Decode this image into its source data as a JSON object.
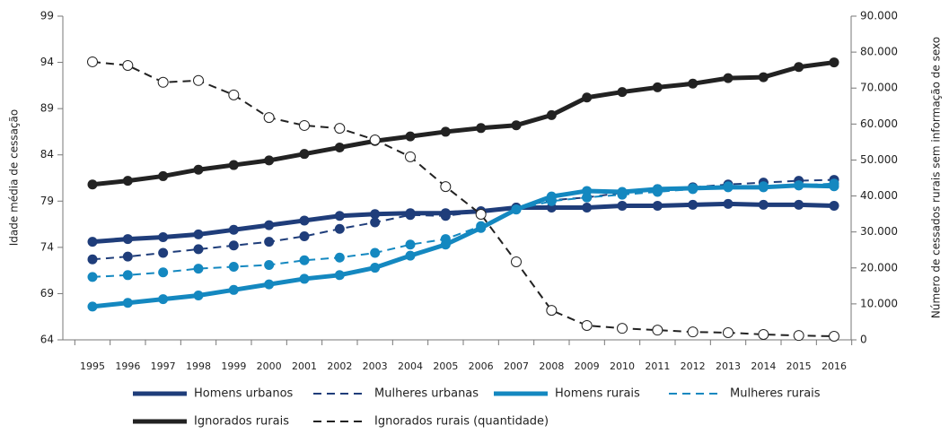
{
  "chart_data": {
    "type": "line",
    "y_label": "Idade média de cessação",
    "y2_label": "Número de cessados rurais sem informação de sexo",
    "categories": [
      "1995",
      "1996",
      "1997",
      "1998",
      "1999",
      "2000",
      "2001",
      "2002",
      "2003",
      "2004",
      "2005",
      "2006",
      "2007",
      "2008",
      "2009",
      "2010",
      "2011",
      "2012",
      "2013",
      "2014",
      "2015",
      "2016"
    ],
    "ylim": [
      64,
      99
    ],
    "yticks": [
      64,
      69,
      74,
      79,
      84,
      89,
      94,
      99
    ],
    "y2lim": [
      0,
      90000
    ],
    "y2ticks": [
      0,
      {
        "value": 10000,
        "label": "10.000"
      },
      {
        "value": 20000,
        "label": "20.000"
      },
      {
        "value": 30000,
        "label": "30.000"
      },
      {
        "value": 40000,
        "label": "40.000"
      },
      {
        "value": 50000,
        "label": "50.000"
      },
      {
        "value": 60000,
        "label": "60.000"
      },
      {
        "value": 70000,
        "label": "70.000"
      },
      {
        "value": 80000,
        "label": "80.000"
      },
      {
        "value": 90000,
        "label": "90.000"
      }
    ],
    "grid": false,
    "legend": "bottom",
    "series": [
      {
        "name": "Homens urbanos",
        "color": "#1f3d7a",
        "dashed": false,
        "values": [
          74.6,
          74.9,
          75.1,
          75.4,
          75.9,
          76.4,
          76.9,
          77.4,
          77.6,
          77.7,
          77.7,
          77.9,
          78.3,
          78.3,
          78.3,
          78.5,
          78.5,
          78.6,
          78.7,
          78.6,
          78.6,
          78.5
        ]
      },
      {
        "name": "Mulheres urbanas",
        "color": "#1f3d7a",
        "dashed": true,
        "values": [
          72.7,
          73.0,
          73.4,
          73.8,
          74.2,
          74.6,
          75.2,
          76.0,
          76.7,
          77.5,
          77.4,
          77.9,
          78.3,
          79.1,
          79.4,
          79.9,
          80.3,
          80.5,
          80.8,
          81.0,
          81.2,
          81.3
        ]
      },
      {
        "name": "Homens rurais",
        "color": "#1488c0",
        "dashed": false,
        "values": [
          67.6,
          68.0,
          68.4,
          68.8,
          69.4,
          70.0,
          70.6,
          71.0,
          71.8,
          73.1,
          74.3,
          76.1,
          78.1,
          79.5,
          80.1,
          80.0,
          80.3,
          80.4,
          80.5,
          80.5,
          80.7,
          80.6
        ]
      },
      {
        "name": "Mulheres rurais",
        "color": "#1488c0",
        "dashed": true,
        "values": [
          70.8,
          71.0,
          71.3,
          71.7,
          71.9,
          72.1,
          72.6,
          72.9,
          73.4,
          74.3,
          74.9,
          76.3,
          78.1,
          79.0,
          79.4,
          79.7,
          80.0,
          80.3,
          80.6,
          80.6,
          80.7,
          80.9
        ]
      },
      {
        "name": "Ignorados rurais",
        "color": "#222222",
        "dashed": false,
        "values": [
          80.8,
          81.2,
          81.7,
          82.4,
          82.9,
          83.4,
          84.1,
          84.8,
          85.5,
          86.0,
          86.5,
          86.9,
          87.2,
          88.3,
          90.2,
          90.8,
          91.3,
          91.7,
          92.3,
          92.4,
          93.5,
          94.0
        ]
      },
      {
        "name": "Ignorados rurais (quantidade)",
        "color": "#222222",
        "dashed": true,
        "axis": "y2",
        "marker_fill": "#ffffff",
        "values": [
          77300,
          76300,
          71600,
          72100,
          68100,
          61800,
          59600,
          58800,
          55600,
          50900,
          42600,
          34900,
          21700,
          8200,
          4000,
          3200,
          2700,
          2200,
          2000,
          1500,
          1200,
          1000
        ]
      }
    ]
  }
}
